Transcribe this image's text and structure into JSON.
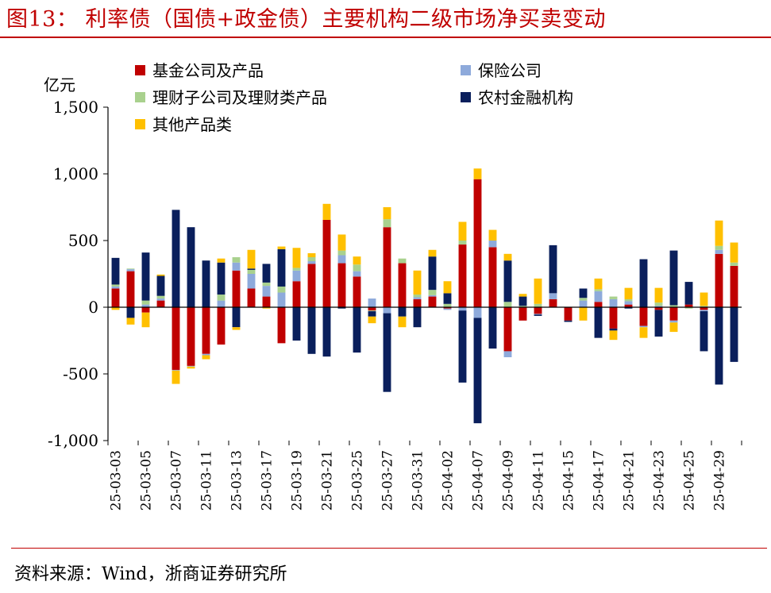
{
  "title": "图13：  利率债（国债+政金债）主要机构二级市场净买卖变动",
  "source": "资料来源：Wind，浙商证券研究所",
  "chart_data": {
    "type": "bar",
    "stacked": true,
    "ylabel": "亿元",
    "ylim": [
      -1000,
      1500
    ],
    "yticks": [
      -1000,
      -500,
      0,
      500,
      1000,
      1500
    ],
    "ytick_labels": [
      "-1,000",
      "-500",
      "0",
      "500",
      "1,000",
      "1,500"
    ],
    "legend_position": "top-left",
    "categories": [
      "25-03-03",
      "25-03-04",
      "25-03-05",
      "25-03-06",
      "25-03-07",
      "25-03-10",
      "25-03-11",
      "25-03-12",
      "25-03-13",
      "25-03-14",
      "25-03-17",
      "25-03-18",
      "25-03-19",
      "25-03-20",
      "25-03-21",
      "25-03-24",
      "25-03-25",
      "25-03-26",
      "25-03-27",
      "25-03-28",
      "25-03-31",
      "25-04-01",
      "25-04-02",
      "25-04-03",
      "25-04-07",
      "25-04-08",
      "25-04-09",
      "25-04-10",
      "25-04-11",
      "25-04-14",
      "25-04-15",
      "25-04-16",
      "25-04-17",
      "25-04-18",
      "25-04-21",
      "25-04-22",
      "25-04-23",
      "25-04-24",
      "25-04-25",
      "25-04-28",
      "25-04-29",
      "25-04-30"
    ],
    "xtick_labels": [
      "25-03-03",
      "25-03-05",
      "25-03-07",
      "25-03-11",
      "25-03-13",
      "25-03-17",
      "25-03-19",
      "25-03-21",
      "25-03-25",
      "25-03-27",
      "25-03-31",
      "25-04-02",
      "25-04-07",
      "25-04-09",
      "25-04-11",
      "25-04-15",
      "25-04-17",
      "25-04-21",
      "25-04-23",
      "25-04-25",
      "25-04-29"
    ],
    "series": [
      {
        "name": "基金公司及产品",
        "color": "#c00000",
        "values": [
          140,
          270,
          -40,
          50,
          -470,
          -440,
          -350,
          -280,
          275,
          140,
          80,
          -270,
          195,
          325,
          655,
          330,
          230,
          -25,
          600,
          330,
          60,
          80,
          -10,
          470,
          960,
          450,
          -330,
          -100,
          -50,
          60,
          -100,
          0,
          40,
          -160,
          20,
          -140,
          -20,
          -100,
          20,
          -20,
          400,
          310
        ]
      },
      {
        "name": "保险公司",
        "color": "#8eaadb",
        "values": [
          15,
          15,
          20,
          15,
          -5,
          -5,
          -10,
          50,
          60,
          110,
          80,
          110,
          80,
          20,
          0,
          60,
          40,
          65,
          -45,
          0,
          15,
          10,
          -10,
          -25,
          -80,
          50,
          -45,
          0,
          -5,
          45,
          0,
          50,
          80,
          60,
          25,
          -10,
          10,
          -15,
          0,
          -10,
          30,
          0
        ]
      },
      {
        "name": "理财子公司及理财类产品",
        "color": "#a9d18e",
        "values": [
          15,
          5,
          30,
          20,
          0,
          0,
          0,
          45,
          40,
          30,
          25,
          45,
          20,
          30,
          0,
          35,
          50,
          -5,
          60,
          35,
          20,
          40,
          25,
          30,
          0,
          0,
          40,
          10,
          25,
          0,
          0,
          20,
          15,
          20,
          15,
          0,
          25,
          15,
          -10,
          10,
          30,
          25
        ]
      },
      {
        "name": "农村金融机构",
        "color": "#0a1f5c",
        "values": [
          200,
          -80,
          360,
          150,
          730,
          600,
          350,
          240,
          -150,
          10,
          140,
          280,
          -250,
          -350,
          -370,
          -10,
          -340,
          -40,
          -590,
          -70,
          -150,
          250,
          80,
          -540,
          -790,
          -310,
          310,
          70,
          -10,
          360,
          -10,
          70,
          -230,
          -15,
          -10,
          360,
          -200,
          410,
          170,
          -300,
          -580,
          -410
        ]
      },
      {
        "name": "其他产品类",
        "color": "#ffc000",
        "values": [
          -20,
          -50,
          -110,
          10,
          -100,
          -15,
          -30,
          30,
          -20,
          140,
          -10,
          20,
          150,
          30,
          120,
          120,
          60,
          -50,
          90,
          -80,
          180,
          50,
          90,
          140,
          80,
          80,
          50,
          20,
          190,
          0,
          0,
          -100,
          80,
          -70,
          85,
          -80,
          110,
          -70,
          0,
          100,
          190,
          150
        ]
      }
    ]
  }
}
